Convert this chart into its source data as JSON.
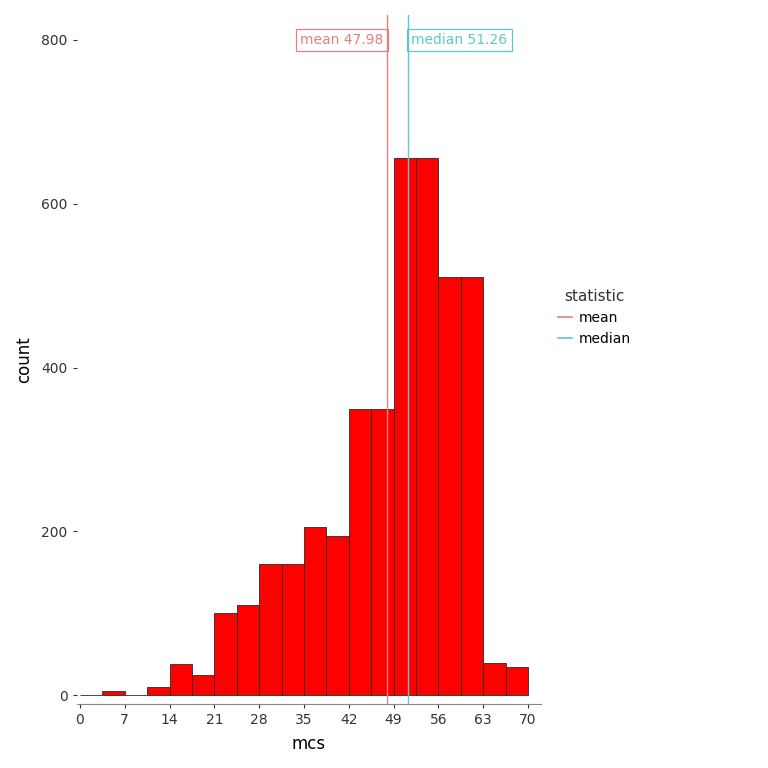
{
  "mean": 47.98,
  "median": 51.26,
  "bar_color": "#FF0000",
  "bar_edge_color": "#2a2a2a",
  "mean_line_color": "#E88080",
  "median_line_color": "#60C8C8",
  "xlabel": "mcs",
  "ylabel": "count",
  "legend_title": "statistic",
  "xlim": [
    -0.5,
    72
  ],
  "ylim": [
    -10,
    830
  ],
  "xticks": [
    0,
    7,
    14,
    21,
    28,
    35,
    42,
    49,
    56,
    63,
    70
  ],
  "yticks": [
    0,
    200,
    400,
    600,
    800
  ],
  "bin_lefts": [
    0,
    3.5,
    7,
    10.5,
    14,
    17.5,
    21,
    24.5,
    28,
    31.5,
    35,
    38.5,
    42,
    45.5,
    49,
    52.5,
    56,
    59.5,
    63,
    66.5
  ],
  "bin_widths": [
    3.5,
    3.5,
    3.5,
    3.5,
    3.5,
    3.5,
    3.5,
    3.5,
    3.5,
    3.5,
    3.5,
    3.5,
    3.5,
    3.5,
    3.5,
    3.5,
    3.5,
    3.5,
    3.5,
    3.5
  ],
  "heights": [
    1,
    6,
    0,
    10,
    38,
    25,
    100,
    110,
    160,
    160,
    205,
    195,
    350,
    350,
    655,
    655,
    510,
    510,
    40,
    35
  ],
  "mean_label": "mean 47.98",
  "median_label": "median 51.26",
  "mean_legend": "mean",
  "median_legend": "median",
  "figure_width": 7.68,
  "figure_height": 7.68,
  "dpi": 100
}
